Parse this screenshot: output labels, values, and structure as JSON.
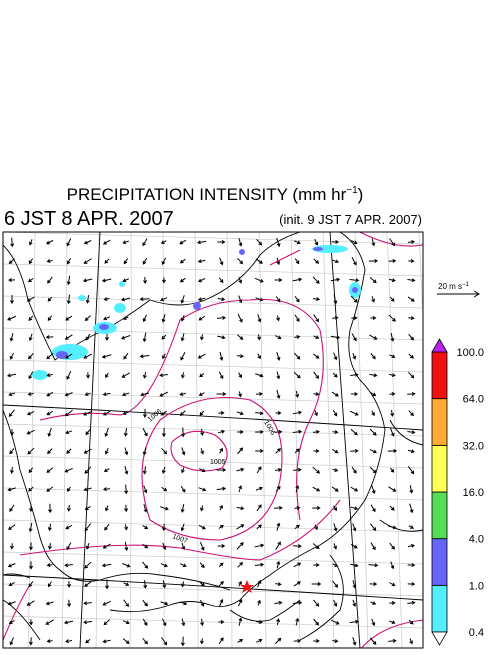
{
  "header": {
    "title": [
      "PRECIPITATION INTENSITY (mm hr",
      "−1",
      ")"
    ],
    "time": "6 JST 8 APR. 2007",
    "init": "(init. 9 JST 7 APR. 2007)"
  },
  "wind_legend": {
    "label": [
      "20 m s",
      "−1"
    ]
  },
  "isobars": {
    "labels": [
      "1006",
      "1006",
      "1005",
      "1007"
    ]
  },
  "colorbar": {
    "labels": [
      "0.4",
      "1.0",
      "4.0",
      "16.0",
      "32.0",
      "64.0",
      "100.0"
    ],
    "colors": [
      "#55eeff",
      "#6666ff",
      "#55dd55",
      "#ffff55",
      "#ffaa33",
      "#ee1111",
      "#bb22ee"
    ],
    "low_color": "#ffffff"
  }
}
